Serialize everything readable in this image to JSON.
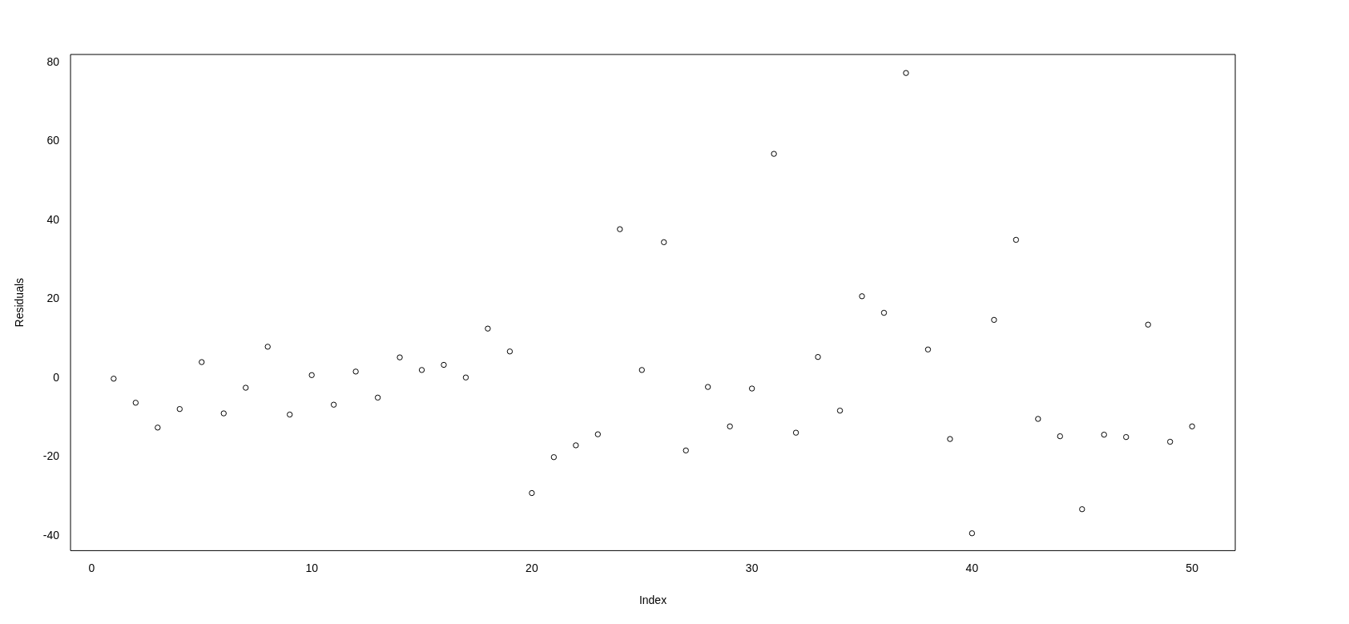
{
  "chart_data": {
    "type": "scatter",
    "xlabel": "Index",
    "ylabel": "Residuals",
    "x": [
      1,
      2,
      3,
      4,
      5,
      6,
      7,
      8,
      9,
      10,
      11,
      12,
      13,
      14,
      15,
      16,
      17,
      18,
      19,
      20,
      21,
      22,
      23,
      24,
      25,
      26,
      27,
      28,
      29,
      30,
      31,
      32,
      33,
      34,
      35,
      36,
      37,
      38,
      39,
      40,
      41,
      42,
      43,
      44,
      45,
      46,
      47,
      48,
      49,
      50
    ],
    "series": [
      {
        "color": "#000000",
        "values": [
          -0.2,
          -6.3,
          -12.6,
          -7.9,
          4.0,
          -9.0,
          -2.5,
          7.9,
          -9.3,
          0.7,
          -6.8,
          1.6,
          -5.0,
          5.2,
          2.0,
          3.3,
          0.1,
          12.5,
          6.7,
          -29.2,
          -20.1,
          -17.1,
          -14.3,
          37.7,
          2.0,
          34.4,
          -18.4,
          -2.3,
          -12.3,
          -2.7,
          56.8,
          -13.9,
          5.3,
          -8.3,
          20.7,
          16.5,
          77.3,
          7.2,
          -15.5,
          -39.4,
          14.7,
          35.0,
          -10.4,
          -14.8,
          -33.3,
          -14.4,
          -15.0,
          13.5,
          -16.2,
          -12.3
        ]
      }
    ],
    "xlim": [
      -0.96,
      51.96
    ],
    "ylim": [
      -43.8,
      82.0
    ],
    "xticks": [
      0,
      10,
      20,
      30,
      40,
      50
    ],
    "yticks": [
      -40,
      -20,
      0,
      20,
      40,
      60,
      80
    ],
    "grid": false,
    "legend": false,
    "marker": "circle"
  }
}
